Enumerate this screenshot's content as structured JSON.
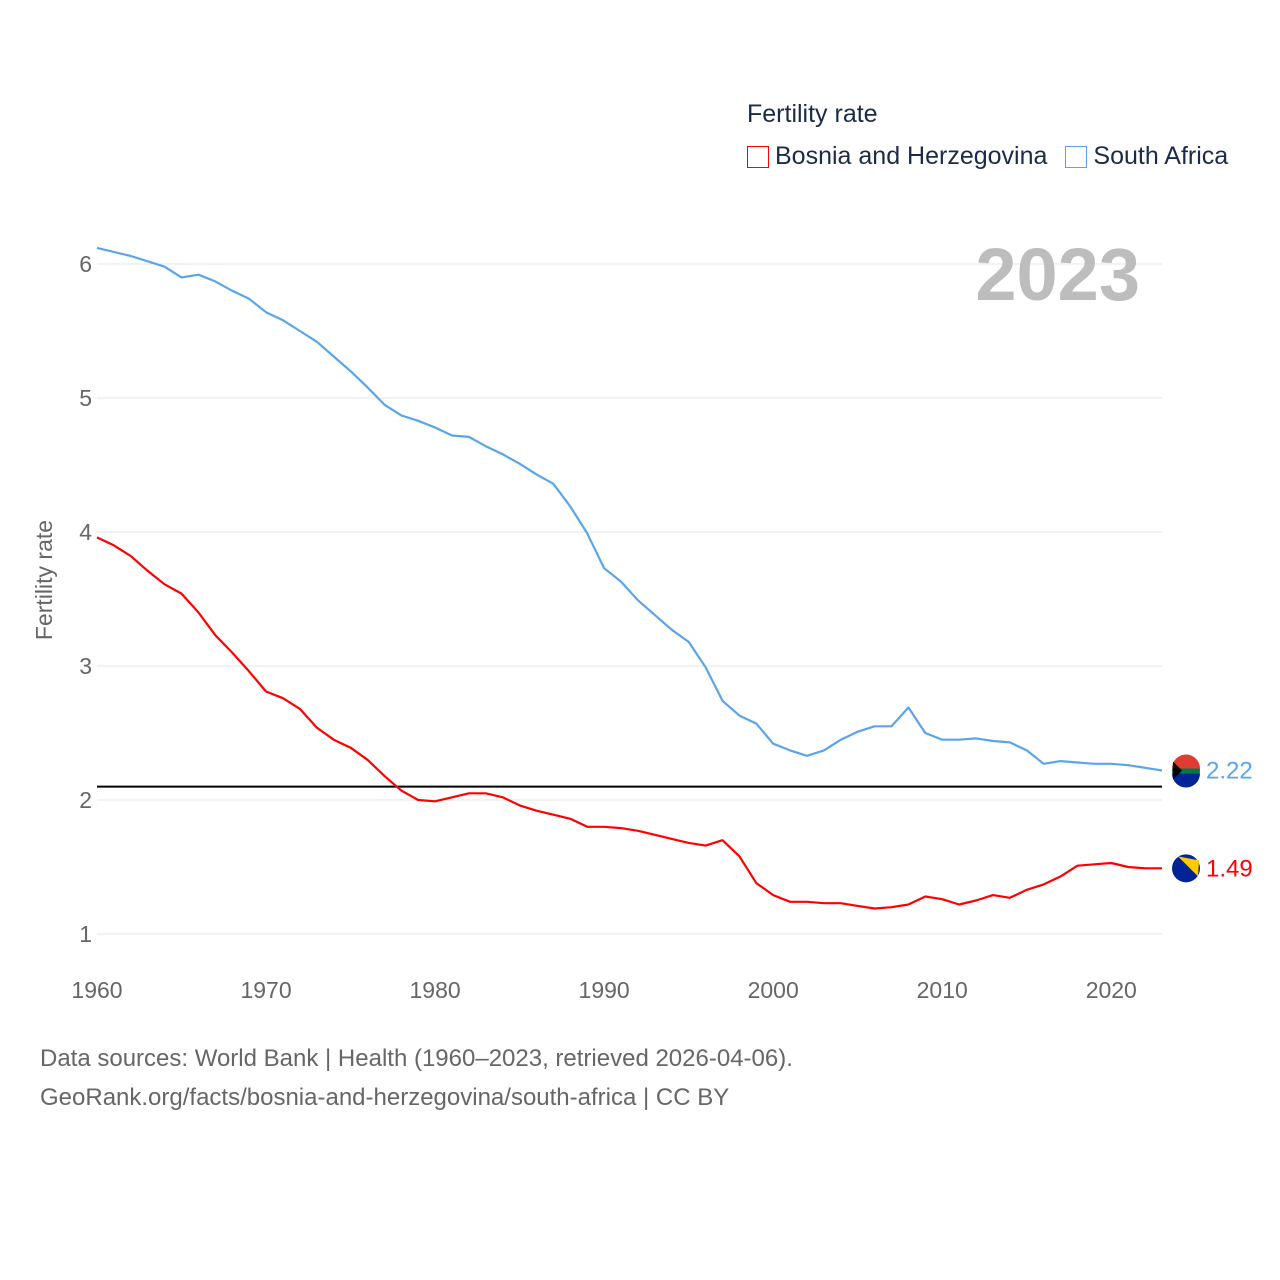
{
  "chart_data": {
    "type": "line",
    "title": "Fertility rate",
    "ylabel": "Fertility rate",
    "xlabel": "",
    "year_label": "2023",
    "xlim": [
      1960,
      2023
    ],
    "ylim": [
      0.8,
      6.25
    ],
    "x_ticks": [
      1960,
      1970,
      1980,
      1990,
      2000,
      2010,
      2020
    ],
    "y_ticks": [
      1,
      2,
      3,
      4,
      5,
      6
    ],
    "grid": true,
    "legend_position": "top-right",
    "reference_line": 2.1,
    "x": [
      1960,
      1961,
      1962,
      1963,
      1964,
      1965,
      1966,
      1967,
      1968,
      1969,
      1970,
      1971,
      1972,
      1973,
      1974,
      1975,
      1976,
      1977,
      1978,
      1979,
      1980,
      1981,
      1982,
      1983,
      1984,
      1985,
      1986,
      1987,
      1988,
      1989,
      1990,
      1991,
      1992,
      1993,
      1994,
      1995,
      1996,
      1997,
      1998,
      1999,
      2000,
      2001,
      2002,
      2003,
      2004,
      2005,
      2006,
      2007,
      2008,
      2009,
      2010,
      2011,
      2012,
      2013,
      2014,
      2015,
      2016,
      2017,
      2018,
      2019,
      2020,
      2021,
      2022,
      2023
    ],
    "series": [
      {
        "name": "Bosnia and Herzegovina",
        "color": "#ff0000",
        "end_label": "1.49",
        "values": [
          3.96,
          3.9,
          3.82,
          3.71,
          3.61,
          3.54,
          3.4,
          3.23,
          3.1,
          2.96,
          2.81,
          2.76,
          2.68,
          2.54,
          2.45,
          2.39,
          2.3,
          2.18,
          2.07,
          2.0,
          1.99,
          2.02,
          2.05,
          2.05,
          2.02,
          1.96,
          1.92,
          1.89,
          1.86,
          1.8,
          1.8,
          1.79,
          1.77,
          1.74,
          1.71,
          1.68,
          1.66,
          1.7,
          1.58,
          1.38,
          1.29,
          1.24,
          1.24,
          1.23,
          1.23,
          1.21,
          1.19,
          1.2,
          1.22,
          1.28,
          1.26,
          1.22,
          1.25,
          1.29,
          1.27,
          1.33,
          1.37,
          1.43,
          1.51,
          1.52,
          1.53,
          1.5,
          1.49,
          1.49
        ]
      },
      {
        "name": "South Africa",
        "color": "#5aa5ea",
        "end_label": "2.22",
        "values": [
          6.12,
          6.09,
          6.06,
          6.02,
          5.98,
          5.9,
          5.92,
          5.87,
          5.8,
          5.74,
          5.64,
          5.58,
          5.5,
          5.42,
          5.31,
          5.2,
          5.08,
          4.95,
          4.87,
          4.83,
          4.78,
          4.72,
          4.71,
          4.64,
          4.58,
          4.51,
          4.43,
          4.36,
          4.19,
          3.99,
          3.73,
          3.63,
          3.49,
          3.38,
          3.27,
          3.18,
          2.99,
          2.74,
          2.63,
          2.57,
          2.42,
          2.37,
          2.33,
          2.37,
          2.45,
          2.51,
          2.55,
          2.55,
          2.69,
          2.5,
          2.45,
          2.45,
          2.46,
          2.44,
          2.43,
          2.37,
          2.27,
          2.29,
          2.28,
          2.27,
          2.27,
          2.26,
          2.24,
          2.22
        ]
      }
    ]
  },
  "footer": {
    "line1": "Data sources: World Bank | Health (1960–2023, retrieved 2026-04-06).",
    "line2": "GeoRank.org/facts/bosnia-and-herzegovina/south-africa | CC BY"
  }
}
